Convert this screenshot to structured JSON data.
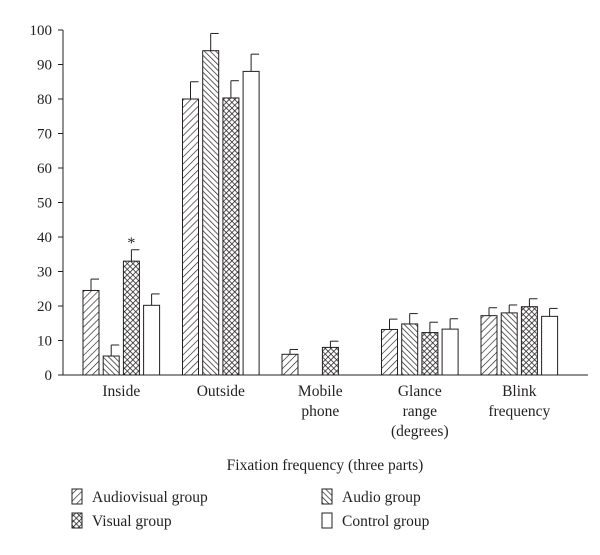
{
  "chart_data": {
    "type": "bar",
    "title": "",
    "xlabel": "Fixation frequency (three parts)",
    "ylabel": "",
    "ylim": [
      0,
      100
    ],
    "yticks": [
      0,
      10,
      20,
      30,
      40,
      50,
      60,
      70,
      80,
      90,
      100
    ],
    "categories": [
      [
        "Inside"
      ],
      [
        "Outside"
      ],
      [
        "Mobile",
        "phone"
      ],
      [
        "Glance",
        "range",
        "(degrees)"
      ],
      [
        "Blink",
        "frequency"
      ]
    ],
    "series": [
      {
        "name": "Audiovisual group",
        "pattern": "diag-right",
        "values": [
          24.5,
          80,
          6,
          13.2,
          17.2
        ],
        "errors": [
          3.3,
          5,
          1.4,
          3,
          2.3
        ]
      },
      {
        "name": "Audio group",
        "pattern": "diag-left",
        "values": [
          5.5,
          94,
          0,
          14.8,
          18
        ],
        "errors": [
          3.2,
          5,
          0,
          3,
          2.3
        ]
      },
      {
        "name": "Visual group",
        "pattern": "crosshatch",
        "values": [
          33,
          80.3,
          8,
          12.3,
          19.8
        ],
        "errors": [
          3.3,
          5,
          1.8,
          3,
          2.3
        ]
      },
      {
        "name": "Control group",
        "pattern": "solid-white",
        "values": [
          20.2,
          88,
          0,
          13.3,
          17
        ],
        "errors": [
          3.3,
          5,
          0,
          3,
          2.3
        ]
      }
    ],
    "annotations": [
      {
        "category_index": 0,
        "series_index": 2,
        "text": "*"
      }
    ],
    "grid": false,
    "legend_position": "bottom"
  }
}
